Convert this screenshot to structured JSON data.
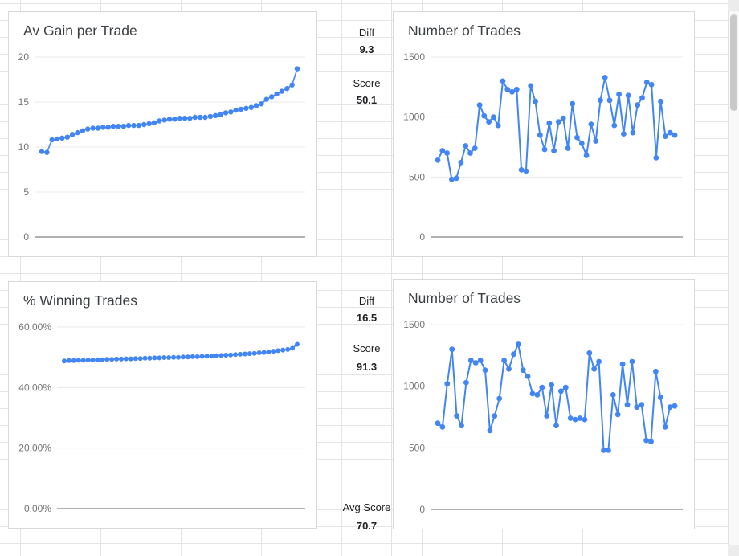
{
  "stats": {
    "diff1": {
      "label": "Diff",
      "value": "9.3"
    },
    "score1": {
      "label": "Score",
      "value": "50.1"
    },
    "diff2": {
      "label": "Diff",
      "value": "16.5"
    },
    "score2": {
      "label": "Score",
      "value": "91.3"
    },
    "avg": {
      "label": "Avg Score",
      "value": "70.7"
    }
  },
  "colors": {
    "series": "#4285f4",
    "gridline": "#e8e8e8",
    "baseline": "#616161",
    "tick_label": "#757575"
  },
  "chart_data": [
    {
      "type": "line",
      "title": "Av Gain per Trade",
      "ylim": [
        0,
        20
      ],
      "yticks": [
        0,
        5,
        10,
        15,
        20
      ],
      "ytick_labels": [
        "0",
        "5",
        "10",
        "15",
        "20"
      ],
      "legend": "none",
      "grid": true,
      "color": "#4285f4",
      "marker_radius": 3.2,
      "line_width": 1.6,
      "values": [
        9.5,
        9.4,
        10.8,
        10.9,
        11.0,
        11.1,
        11.4,
        11.6,
        11.8,
        12.0,
        12.1,
        12.1,
        12.2,
        12.2,
        12.3,
        12.3,
        12.3,
        12.4,
        12.4,
        12.4,
        12.5,
        12.6,
        12.7,
        12.9,
        13.0,
        13.1,
        13.1,
        13.2,
        13.2,
        13.2,
        13.3,
        13.3,
        13.3,
        13.4,
        13.5,
        13.6,
        13.8,
        13.9,
        14.1,
        14.2,
        14.3,
        14.4,
        14.6,
        14.8,
        15.3,
        15.6,
        15.9,
        16.2,
        16.5,
        16.9,
        18.7
      ]
    },
    {
      "type": "line",
      "title": "Number of Trades",
      "ylim": [
        0,
        1500
      ],
      "yticks": [
        0,
        500,
        1000,
        1500
      ],
      "ytick_labels": [
        "0",
        "500",
        "1000",
        "1500"
      ],
      "legend": "none",
      "grid": true,
      "color": "#4285f4",
      "marker_radius": 3.4,
      "line_width": 2,
      "values": [
        640,
        720,
        700,
        480,
        490,
        620,
        760,
        700,
        740,
        1100,
        1010,
        960,
        1000,
        930,
        1300,
        1230,
        1210,
        1230,
        560,
        550,
        1260,
        1130,
        850,
        730,
        950,
        720,
        960,
        990,
        740,
        1110,
        830,
        780,
        680,
        940,
        800,
        1140,
        1330,
        1140,
        930,
        1190,
        860,
        1180,
        870,
        1100,
        1160,
        1290,
        1270,
        660,
        1130,
        840,
        870,
        850
      ]
    },
    {
      "type": "line",
      "title": "% Winning Trades",
      "ylim": [
        0,
        60
      ],
      "yticks": [
        0,
        20,
        40,
        60
      ],
      "ytick_labels": [
        "0.00%",
        "20.00%",
        "40.00%",
        "60.00%"
      ],
      "legend": "none",
      "grid": true,
      "color": "#4285f4",
      "marker_radius": 3.0,
      "line_width": 1.6,
      "values": [
        48.8,
        48.9,
        48.9,
        49.0,
        49.0,
        49.1,
        49.1,
        49.2,
        49.2,
        49.3,
        49.3,
        49.4,
        49.4,
        49.5,
        49.5,
        49.6,
        49.6,
        49.7,
        49.7,
        49.8,
        49.8,
        49.9,
        49.9,
        50.0,
        50.0,
        50.1,
        50.1,
        50.2,
        50.2,
        50.3,
        50.4,
        50.4,
        50.5,
        50.6,
        50.7,
        50.8,
        50.9,
        51.0,
        51.1,
        51.2,
        51.3,
        51.5,
        51.6,
        51.8,
        52.0,
        52.2,
        52.4,
        52.6,
        53.0,
        54.3
      ]
    },
    {
      "type": "line",
      "title": "Number of Trades",
      "ylim": [
        0,
        1500
      ],
      "yticks": [
        0,
        500,
        1000,
        1500
      ],
      "ytick_labels": [
        "0",
        "500",
        "1000",
        "1500"
      ],
      "legend": "none",
      "grid": true,
      "color": "#4285f4",
      "marker_radius": 3.4,
      "line_width": 2,
      "values": [
        700,
        670,
        1020,
        1300,
        760,
        680,
        1030,
        1210,
        1190,
        1210,
        1130,
        640,
        760,
        900,
        1210,
        1140,
        1260,
        1340,
        1130,
        1080,
        940,
        930,
        990,
        760,
        1010,
        680,
        960,
        990,
        740,
        730,
        740,
        730,
        1270,
        1140,
        1200,
        480,
        480,
        930,
        770,
        1180,
        850,
        1200,
        830,
        850,
        560,
        550,
        1120,
        910,
        670,
        830,
        840
      ]
    }
  ]
}
